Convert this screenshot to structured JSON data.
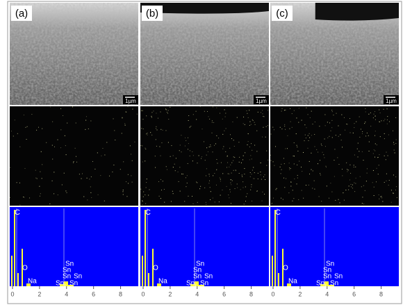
{
  "panels": [
    {
      "label": "(a)",
      "scale_bar": "1µm",
      "spectrum": {
        "peak_labels": [
          "C",
          "O",
          "Na",
          "Sn",
          "Sn",
          "Sn",
          "Sn",
          "Sn,",
          "Sn"
        ],
        "xlim": [
          0,
          9
        ],
        "xticks": [
          0,
          2,
          4,
          6,
          8
        ]
      }
    },
    {
      "label": "(b)",
      "scale_bar": "1µm",
      "spectrum": {
        "peak_labels": [
          "C",
          "O",
          "Na",
          "Sn",
          "Sn",
          "Sn",
          "Sn",
          "Sn,",
          "Sn"
        ],
        "xlim": [
          0,
          9
        ],
        "xticks": [
          0,
          2,
          4,
          6,
          8
        ]
      }
    },
    {
      "label": "(c)",
      "scale_bar": "1µm",
      "spectrum": {
        "peak_labels": [
          "C",
          "O",
          "Na",
          "Sn",
          "Sn",
          "Sn",
          "Sn",
          "Sn,",
          "Sn"
        ],
        "xlim": [
          0,
          9
        ],
        "xticks": [
          0,
          2,
          4,
          6,
          8
        ]
      }
    }
  ]
}
